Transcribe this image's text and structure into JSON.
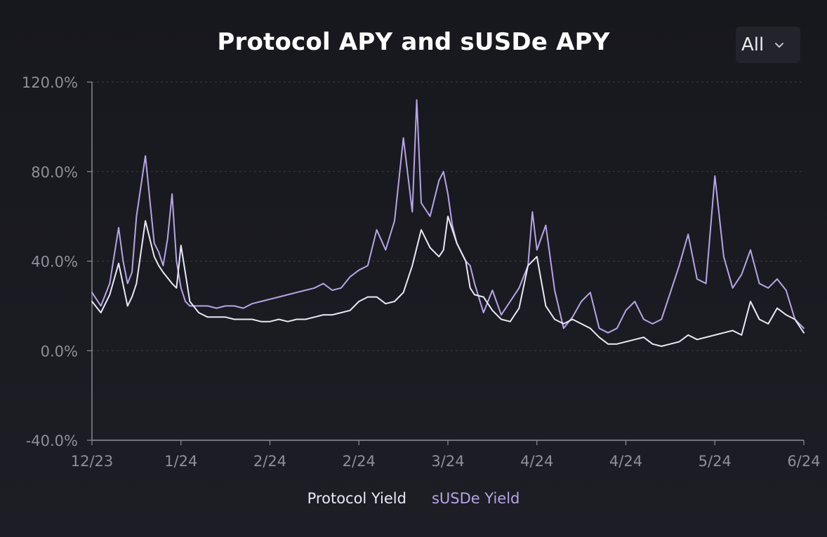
{
  "chart_data": {
    "type": "line",
    "title": "Protocol APY and sUSDe APY",
    "xlabel": "",
    "ylabel": "",
    "ylim": [
      -40,
      120
    ],
    "y_ticks": [
      120,
      80,
      40,
      0,
      -40
    ],
    "y_tick_labels": [
      "120.0%",
      "80.0%",
      "40.0%",
      "0.0%",
      "-40.0%"
    ],
    "x_tick_labels": [
      "12/23",
      "1/24",
      "2/24",
      "2/24",
      "3/24",
      "4/24",
      "4/24",
      "5/24",
      "6/24"
    ],
    "x_range": [
      0,
      160
    ],
    "grid": "dashed-horizontal",
    "legend_position": "bottom-center",
    "series": [
      {
        "name": "Protocol Yield",
        "color": "#ebe8f6",
        "x": [
          0,
          2,
          4,
          6,
          8,
          9,
          10,
          12,
          14,
          15,
          16,
          18,
          19,
          20,
          22,
          24,
          25,
          26,
          28,
          30,
          32,
          34,
          36,
          38,
          40,
          42,
          44,
          46,
          48,
          50,
          52,
          54,
          56,
          58,
          60,
          62,
          64,
          66,
          68,
          70,
          72,
          74,
          76,
          78,
          79,
          80,
          82,
          84,
          85,
          86,
          88,
          90,
          92,
          94,
          96,
          98,
          100,
          102,
          104,
          106,
          108,
          110,
          112,
          114,
          116,
          118,
          120,
          122,
          124,
          126,
          128,
          130,
          132,
          134,
          136,
          138,
          140,
          142,
          144,
          146,
          148,
          150,
          152,
          154,
          156,
          158,
          160
        ],
        "values": [
          22,
          17,
          25,
          39,
          20,
          24,
          30,
          58,
          42,
          38,
          35,
          30,
          28,
          47,
          22,
          17,
          16,
          15,
          15,
          15,
          14,
          14,
          14,
          13,
          13,
          14,
          13,
          14,
          14,
          15,
          16,
          16,
          17,
          18,
          22,
          24,
          24,
          21,
          22,
          26,
          38,
          54,
          46,
          42,
          45,
          60,
          48,
          40,
          28,
          25,
          24,
          18,
          14,
          13,
          19,
          38,
          42,
          20,
          14,
          12,
          14,
          12,
          10,
          6,
          3,
          3,
          4,
          5,
          6,
          3,
          2,
          3,
          4,
          7,
          5,
          6,
          7,
          8,
          9,
          7,
          22,
          14,
          12,
          19,
          16,
          14,
          8
        ],
        "note_values_in_percent": true
      },
      {
        "name": "sUSDe Yield",
        "color": "#b7a4e6",
        "x": [
          0,
          2,
          4,
          6,
          7,
          8,
          9,
          10,
          12,
          14,
          15,
          16,
          17,
          18,
          19,
          20,
          21,
          22,
          24,
          26,
          28,
          30,
          32,
          34,
          36,
          38,
          40,
          42,
          44,
          46,
          48,
          50,
          52,
          54,
          56,
          58,
          60,
          62,
          64,
          66,
          68,
          70,
          72,
          73,
          74,
          76,
          78,
          79,
          80,
          81,
          82,
          84,
          85,
          86,
          88,
          90,
          92,
          94,
          96,
          98,
          99,
          100,
          102,
          104,
          106,
          108,
          110,
          112,
          114,
          116,
          118,
          120,
          122,
          124,
          126,
          128,
          130,
          132,
          134,
          136,
          138,
          140,
          142,
          144,
          146,
          148,
          150,
          152,
          154,
          156,
          158,
          160
        ],
        "values": [
          26,
          20,
          30,
          55,
          40,
          30,
          35,
          60,
          87,
          48,
          44,
          38,
          50,
          70,
          40,
          28,
          22,
          20,
          20,
          20,
          19,
          20,
          20,
          19,
          21,
          22,
          23,
          24,
          25,
          26,
          27,
          28,
          30,
          27,
          28,
          33,
          36,
          38,
          54,
          45,
          58,
          95,
          62,
          112,
          66,
          60,
          76,
          80,
          70,
          56,
          48,
          40,
          38,
          30,
          17,
          27,
          16,
          22,
          28,
          38,
          62,
          45,
          56,
          27,
          10,
          15,
          22,
          26,
          10,
          8,
          10,
          18,
          22,
          14,
          12,
          14,
          26,
          38,
          52,
          32,
          30,
          78,
          42,
          28,
          34,
          45,
          30,
          28,
          32,
          27,
          14,
          10
        ],
        "note_values_in_percent": true
      }
    ]
  },
  "controls": {
    "range_select": {
      "value": "All",
      "icon": "chevron-down-icon"
    }
  }
}
